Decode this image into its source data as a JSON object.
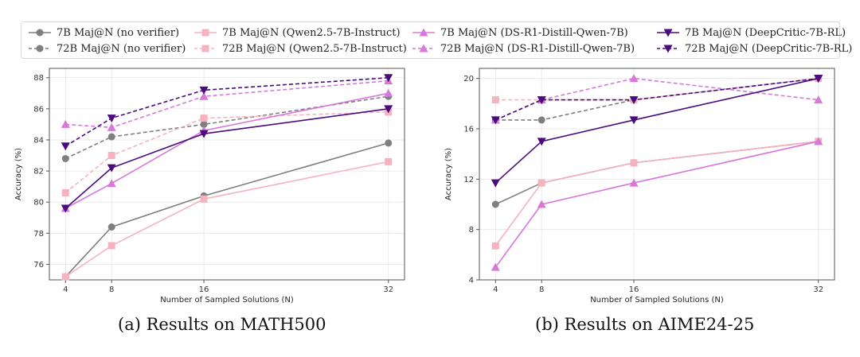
{
  "legend": {
    "entries": [
      {
        "label": "7B Maj@N (no verifier)",
        "color": "#7f7f7f",
        "marker": "circle",
        "dashed": false
      },
      {
        "label": "72B Maj@N (no verifier)",
        "color": "#7f7f7f",
        "marker": "circle",
        "dashed": true
      },
      {
        "label": "7B Maj@N (Qwen2.5-7B-Instruct)",
        "color": "#f5b3c0",
        "marker": "square",
        "dashed": false
      },
      {
        "label": "72B Maj@N (Qwen2.5-7B-Instruct)",
        "color": "#f5b3c0",
        "marker": "square",
        "dashed": true
      },
      {
        "label": "7B Maj@N (DS-R1-Distill-Qwen-7B)",
        "color": "#d778d9",
        "marker": "triangle-up",
        "dashed": false
      },
      {
        "label": "72B Maj@N (DS-R1-Distill-Qwen-7B)",
        "color": "#d778d9",
        "marker": "triangle-up",
        "dashed": true
      },
      {
        "label": "7B Maj@N (DeepCritic-7B-RL)",
        "color": "#4b0a7d",
        "marker": "triangle-down",
        "dashed": false
      },
      {
        "label": "72B Maj@N (DeepCritic-7B-RL)",
        "color": "#4b0a7d",
        "marker": "triangle-down",
        "dashed": true
      }
    ]
  },
  "captions": {
    "left": "(a)  Results on MATH500",
    "right": "(b)  Results on AIME24-25"
  },
  "chart_data": [
    {
      "type": "line",
      "title": "",
      "xlabel": "Number of Sampled Solutions (N)",
      "ylabel": "Accuracy (%)",
      "x": [
        4,
        8,
        16,
        32
      ],
      "xticks": [
        "4",
        "8",
        "16",
        "32"
      ],
      "ylim": [
        75,
        88.6
      ],
      "yticks": [
        "76",
        "78",
        "80",
        "82",
        "84",
        "86",
        "88"
      ],
      "grid": true,
      "series": [
        {
          "name": "7B Maj@N (no verifier)",
          "values": [
            75.2,
            78.4,
            80.4,
            83.8
          ]
        },
        {
          "name": "72B Maj@N (no verifier)",
          "values": [
            82.8,
            84.2,
            85.0,
            86.8
          ]
        },
        {
          "name": "7B Maj@N (Qwen2.5-7B-Instruct)",
          "values": [
            75.2,
            77.2,
            80.2,
            82.6
          ]
        },
        {
          "name": "72B Maj@N (Qwen2.5-7B-Instruct)",
          "values": [
            80.6,
            83.0,
            85.4,
            85.8
          ]
        },
        {
          "name": "7B Maj@N (DS-R1-Distill-Qwen-7B)",
          "values": [
            79.6,
            81.2,
            84.6,
            87.0
          ]
        },
        {
          "name": "72B Maj@N (DS-R1-Distill-Qwen-7B)",
          "values": [
            85.0,
            84.8,
            86.8,
            87.8
          ]
        },
        {
          "name": "7B Maj@N (DeepCritic-7B-RL)",
          "values": [
            79.6,
            82.2,
            84.4,
            86.0
          ]
        },
        {
          "name": "72B Maj@N (DeepCritic-7B-RL)",
          "values": [
            83.6,
            85.4,
            87.2,
            88.0
          ]
        }
      ]
    },
    {
      "type": "line",
      "title": "",
      "xlabel": "Number of Sampled Solutions (N)",
      "ylabel": "Accuracy (%)",
      "x": [
        4,
        8,
        16,
        32
      ],
      "xticks": [
        "4",
        "8",
        "16",
        "32"
      ],
      "ylim": [
        4,
        20.8
      ],
      "yticks": [
        "4",
        "8",
        "12",
        "16",
        "20"
      ],
      "grid": true,
      "series": [
        {
          "name": "7B Maj@N (no verifier)",
          "values": [
            10.0,
            11.7,
            13.3,
            15.0
          ]
        },
        {
          "name": "72B Maj@N (no verifier)",
          "values": [
            16.7,
            16.7,
            18.3,
            20.0
          ]
        },
        {
          "name": "7B Maj@N (Qwen2.5-7B-Instruct)",
          "values": [
            6.7,
            11.7,
            13.3,
            15.0
          ]
        },
        {
          "name": "72B Maj@N (Qwen2.5-7B-Instruct)",
          "values": [
            18.3,
            18.3,
            18.3,
            20.0
          ]
        },
        {
          "name": "7B Maj@N (DS-R1-Distill-Qwen-7B)",
          "values": [
            5.0,
            10.0,
            11.7,
            15.0
          ]
        },
        {
          "name": "72B Maj@N (DS-R1-Distill-Qwen-7B)",
          "values": [
            16.7,
            18.3,
            20.0,
            18.3
          ]
        },
        {
          "name": "7B Maj@N (DeepCritic-7B-RL)",
          "values": [
            11.7,
            15.0,
            16.7,
            20.0
          ]
        },
        {
          "name": "72B Maj@N (DeepCritic-7B-RL)",
          "values": [
            16.7,
            18.3,
            18.3,
            20.0
          ]
        }
      ]
    }
  ]
}
